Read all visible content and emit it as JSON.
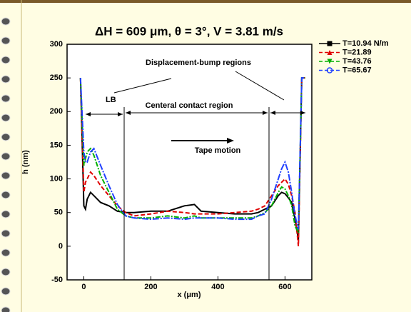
{
  "chart_data": {
    "type": "line",
    "title": "ΔH = 609 μm, θ = 3°, V = 3.81 m/s",
    "x_label": "x (μm)",
    "y_label": "h (nm)",
    "annotations": [
      "Displacement-bump regions",
      "LB",
      "Centeral contact region",
      "Tape motion"
    ],
    "x": [
      -10,
      0,
      5,
      10,
      20,
      30,
      50,
      75,
      100,
      125,
      150,
      200,
      250,
      300,
      330,
      350,
      400,
      450,
      500,
      520,
      540,
      560,
      580,
      590,
      600,
      610,
      620,
      630,
      640,
      650,
      660
    ],
    "series": [
      {
        "name": "T=10.94 N/m",
        "color": "#000000",
        "marker": "square",
        "values": [
          250,
          60,
          55,
          70,
          80,
          75,
          65,
          60,
          52,
          50,
          50,
          52,
          52,
          60,
          62,
          52,
          50,
          48,
          48,
          50,
          55,
          60,
          75,
          80,
          78,
          72,
          65,
          40,
          10,
          250,
          250
        ]
      },
      {
        "name": "T=21.89",
        "color": "#e00000",
        "marker": "triangle",
        "values": [
          250,
          80,
          95,
          100,
          110,
          105,
          90,
          75,
          60,
          50,
          45,
          48,
          52,
          50,
          48,
          48,
          48,
          50,
          52,
          55,
          60,
          75,
          90,
          95,
          100,
          92,
          75,
          50,
          0,
          250,
          250
        ]
      },
      {
        "name": "T=43.76",
        "color": "#00b000",
        "marker": "triangle-down",
        "values": [
          250,
          120,
          130,
          140,
          145,
          135,
          105,
          80,
          55,
          45,
          42,
          42,
          45,
          42,
          45,
          42,
          42,
          42,
          42,
          45,
          50,
          60,
          80,
          88,
          85,
          75,
          60,
          30,
          20,
          250,
          250
        ]
      },
      {
        "name": "T=65.67",
        "color": "#2040ff",
        "marker": "circle",
        "values": [
          250,
          140,
          125,
          125,
          140,
          145,
          120,
          90,
          62,
          45,
          42,
          40,
          42,
          40,
          42,
          42,
          42,
          40,
          40,
          45,
          48,
          70,
          100,
          115,
          125,
          110,
          80,
          45,
          25,
          250,
          250
        ]
      }
    ],
    "xlim": [
      -50,
      680
    ],
    "xticks": [
      0,
      200,
      400,
      600
    ],
    "ylim": [
      -50,
      300
    ],
    "yticks": [
      -50,
      0,
      50,
      100,
      150,
      200,
      250,
      300
    ]
  }
}
